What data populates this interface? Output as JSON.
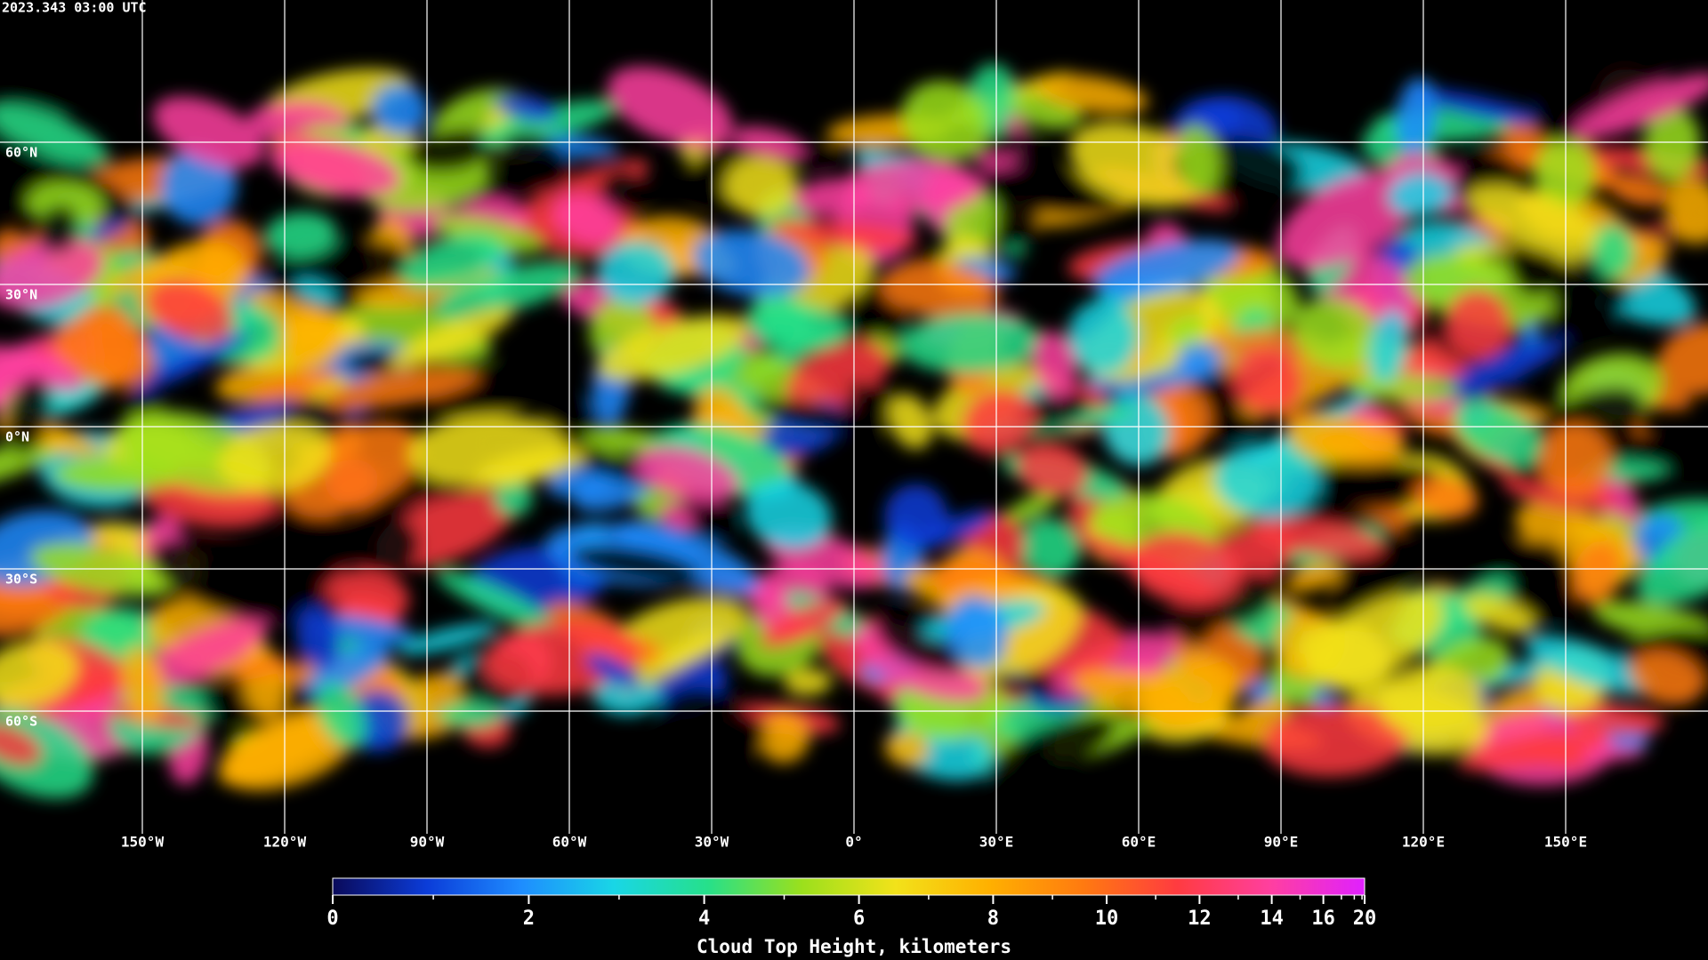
{
  "header": {
    "title": "2023.343 03:00 UTC"
  },
  "map": {
    "xlim": [
      -180,
      180
    ],
    "ylim": [
      -90,
      90
    ],
    "lat_lines": [
      {
        "value": 60,
        "label": "60°N"
      },
      {
        "value": 30,
        "label": "30°N"
      },
      {
        "value": 0,
        "label": "0°N"
      },
      {
        "value": -30,
        "label": "30°S"
      },
      {
        "value": -60,
        "label": "60°S"
      }
    ],
    "lon_lines": [
      {
        "value": -150,
        "label": "150°W"
      },
      {
        "value": -120,
        "label": "120°W"
      },
      {
        "value": -90,
        "label": "90°W"
      },
      {
        "value": -60,
        "label": "60°W"
      },
      {
        "value": -30,
        "label": "30°W"
      },
      {
        "value": 0,
        "label": "0°"
      },
      {
        "value": 30,
        "label": "30°E"
      },
      {
        "value": 60,
        "label": "60°E"
      },
      {
        "value": 90,
        "label": "90°E"
      },
      {
        "value": 120,
        "label": "120°E"
      },
      {
        "value": 150,
        "label": "150°E"
      }
    ]
  },
  "colorbar": {
    "label": "Cloud Top Height, kilometers",
    "lim": [
      0,
      20
    ],
    "ticks": [
      0,
      2,
      4,
      6,
      8,
      10,
      12,
      14,
      16,
      20
    ],
    "minor_ticks": [
      1,
      3,
      5,
      7,
      9,
      11,
      13,
      15,
      17,
      18,
      19
    ],
    "colors": [
      "#0a0a5a",
      "#0b3cd8",
      "#1e8cff",
      "#19d6e6",
      "#26e08a",
      "#9be01c",
      "#f2e21a",
      "#ffb000",
      "#ff7a10",
      "#ff3b40",
      "#ff3fa0",
      "#e020ff"
    ]
  }
}
